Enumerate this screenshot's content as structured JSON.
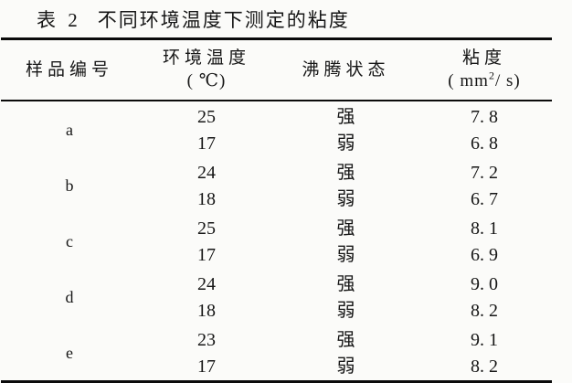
{
  "caption": {
    "label": "表 2",
    "text": "不同环境温度下测定的粘度"
  },
  "colors": {
    "background": "#fbfbf9",
    "text": "#161616",
    "rule": "#0b0b0b"
  },
  "table": {
    "headers": {
      "sample": "样品编号",
      "temperature_line1": "环境温度",
      "temperature_unit": "( ℃)",
      "boiling": "沸腾状态",
      "viscosity_line1": "粘度",
      "viscosity_unit_prefix": "( mm",
      "viscosity_unit_sup": "2",
      "viscosity_unit_suffix": "/ s)"
    },
    "groups": [
      {
        "sample": "a",
        "rows": [
          {
            "temp": "25",
            "boiling": "强",
            "viscosity": "7. 8"
          },
          {
            "temp": "17",
            "boiling": "弱",
            "viscosity": "6. 8"
          }
        ]
      },
      {
        "sample": "b",
        "rows": [
          {
            "temp": "24",
            "boiling": "强",
            "viscosity": "7. 2"
          },
          {
            "temp": "18",
            "boiling": "弱",
            "viscosity": "6. 7"
          }
        ]
      },
      {
        "sample": "c",
        "rows": [
          {
            "temp": "25",
            "boiling": "强",
            "viscosity": "8. 1"
          },
          {
            "temp": "17",
            "boiling": "弱",
            "viscosity": "6. 9"
          }
        ]
      },
      {
        "sample": "d",
        "rows": [
          {
            "temp": "24",
            "boiling": "强",
            "viscosity": "9. 0"
          },
          {
            "temp": "18",
            "boiling": "弱",
            "viscosity": "8. 2"
          }
        ]
      },
      {
        "sample": "e",
        "rows": [
          {
            "temp": "23",
            "boiling": "强",
            "viscosity": "9. 1"
          },
          {
            "temp": "17",
            "boiling": "弱",
            "viscosity": "8. 2"
          }
        ]
      }
    ]
  }
}
